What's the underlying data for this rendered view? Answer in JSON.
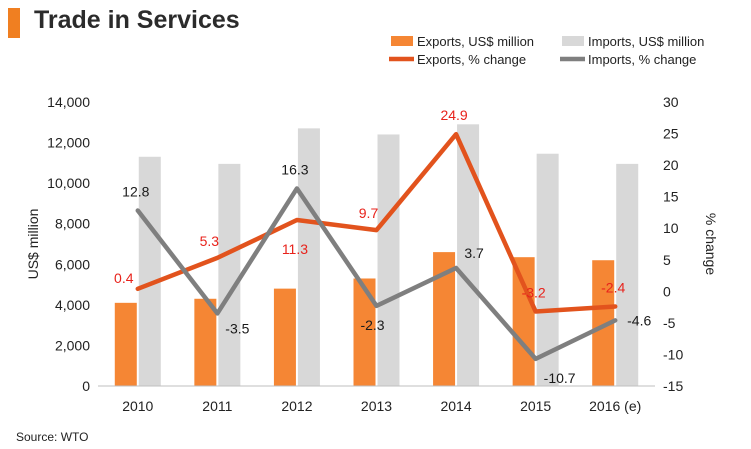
{
  "title": "Trade in Services",
  "source": "Source: WTO",
  "colors": {
    "accent": "#F07F21",
    "exports_bar": "#F58634",
    "imports_bar": "#D8D8D8",
    "exports_line": "#E2531D",
    "imports_line": "#7F7F7F",
    "exports_label": "#E8221B",
    "imports_label": "#1a1a1a",
    "axis": "#222222"
  },
  "chart_data": {
    "type": "bar+line",
    "categories": [
      "2010",
      "2011",
      "2012",
      "2013",
      "2014",
      "2015",
      "2016 (e)"
    ],
    "bar_series": [
      {
        "name": "Exports, US$ million",
        "values": [
          4100,
          4300,
          4800,
          5300,
          6600,
          6350,
          6200
        ]
      },
      {
        "name": "Imports, US$ million",
        "values": [
          11300,
          10950,
          12700,
          12400,
          12900,
          11450,
          10950
        ]
      }
    ],
    "line_series": [
      {
        "name": "Exports, % change",
        "values": [
          0.4,
          5.3,
          11.3,
          9.7,
          24.9,
          -3.2,
          -2.4
        ],
        "labels": [
          "0.4",
          "5.3",
          "11.3",
          "9.7",
          "24.9",
          "-3.2",
          "-2.4"
        ]
      },
      {
        "name": "Imports, % change",
        "values": [
          12.8,
          -3.5,
          16.3,
          -2.3,
          3.7,
          -10.7,
          -4.6
        ],
        "labels": [
          "12.8",
          "-3.5",
          "16.3",
          "-2.3",
          "3.7",
          "-10.7",
          "-4.6"
        ]
      }
    ],
    "ylabel": "US$ million",
    "y2label": "% change",
    "ylim": [
      0,
      14000
    ],
    "y2lim": [
      -15,
      30
    ],
    "yticks": [
      "0",
      "2,000",
      "4,000",
      "6,000",
      "8,000",
      "10,000",
      "12,000",
      "14,000"
    ],
    "y2ticks": [
      "-15",
      "-10",
      "-5",
      "0",
      "5",
      "10",
      "15",
      "20",
      "25",
      "30"
    ],
    "legend_position": "top-right",
    "grid": false
  }
}
